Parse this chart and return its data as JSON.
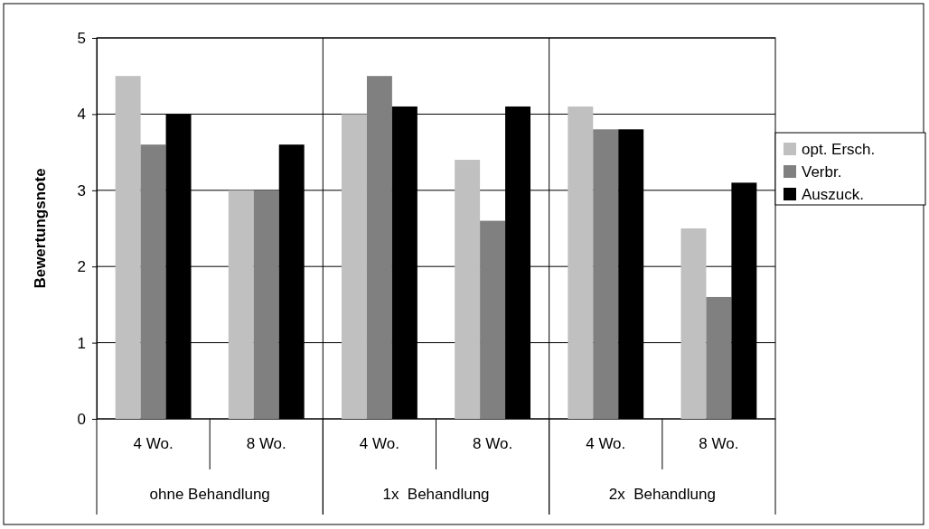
{
  "chart_data": {
    "type": "bar",
    "ylabel": "Bewertungsnote",
    "categories": [
      "4 Wo.",
      "8 Wo.",
      "4 Wo.",
      "8 Wo.",
      "4 Wo.",
      "8 Wo."
    ],
    "series": [
      {
        "name": "opt. Ersch.",
        "color": "#c0c0c0",
        "values": [
          4.5,
          3.0,
          4.0,
          3.4,
          4.1,
          2.5
        ]
      },
      {
        "name": "Verbr.",
        "color": "#808080",
        "values": [
          3.6,
          3.0,
          4.5,
          2.6,
          3.8,
          1.6
        ]
      },
      {
        "name": "Auszuck.",
        "color": "#000000",
        "values": [
          4.0,
          3.6,
          4.1,
          4.1,
          3.8,
          3.1
        ]
      }
    ],
    "ylim": [
      0,
      5
    ],
    "yticks": [
      0,
      1,
      2,
      3,
      4,
      5
    ],
    "grid": "y",
    "legend": "right",
    "annotations": [
      "ohne Behandlung",
      "1x  Behandlung",
      "2x  Behandlung"
    ]
  }
}
